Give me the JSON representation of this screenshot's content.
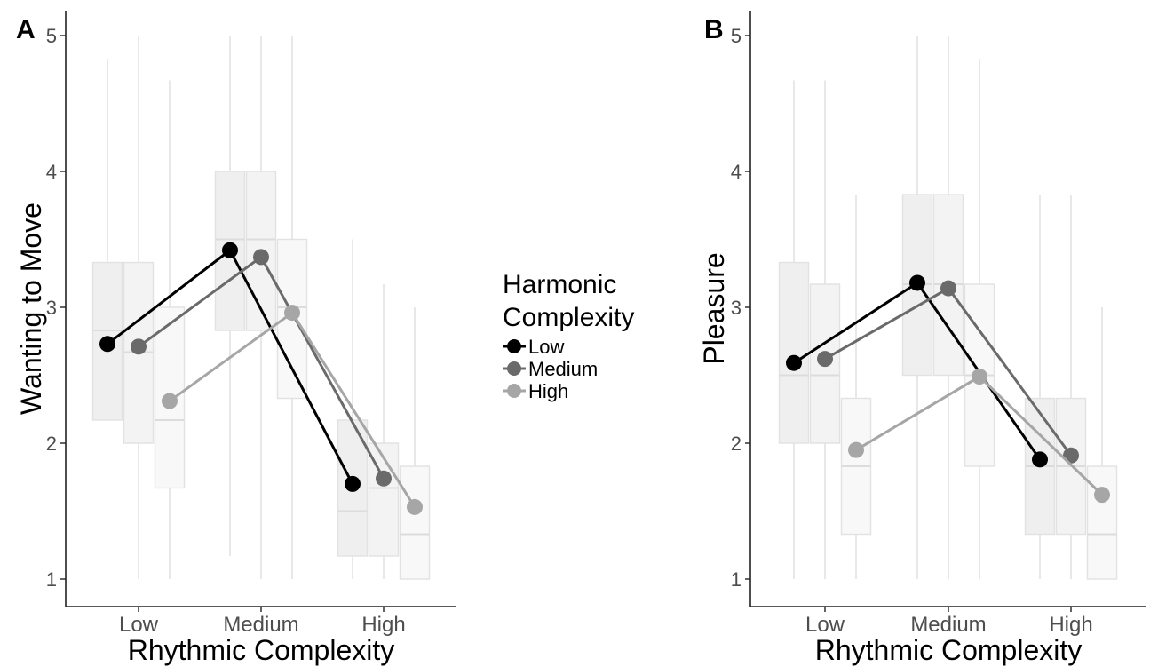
{
  "chart_data": [
    {
      "panel_tag": "A",
      "type": "line",
      "xlabel": "Rhythmic Complexity",
      "ylabel": "Wanting to Move",
      "categories": [
        "Low",
        "Medium",
        "High"
      ],
      "ylim": [
        1,
        5
      ],
      "yticks": [
        1,
        2,
        3,
        4,
        5
      ],
      "grid": false,
      "series": [
        {
          "name": "Low",
          "color": "#000000",
          "values": [
            2.73,
            3.42,
            1.7
          ],
          "boxes": [
            {
              "lower": 2.17,
              "q1": 2.17,
              "median": 2.83,
              "q3": 3.33,
              "upper": 4.83
            },
            {
              "lower": 1.17,
              "q1": 2.83,
              "median": 3.5,
              "q3": 4.0,
              "upper": 5.0
            },
            {
              "lower": 1.0,
              "q1": 1.17,
              "median": 1.5,
              "q3": 2.17,
              "upper": 3.5
            }
          ]
        },
        {
          "name": "Medium",
          "color": "#6a6a6a",
          "values": [
            2.71,
            3.37,
            1.74
          ],
          "boxes": [
            {
              "lower": 1.0,
              "q1": 2.0,
              "median": 2.67,
              "q3": 3.33,
              "upper": 5.0
            },
            {
              "lower": 1.0,
              "q1": 2.83,
              "median": 3.5,
              "q3": 4.0,
              "upper": 5.0
            },
            {
              "lower": 1.0,
              "q1": 1.17,
              "median": 1.67,
              "q3": 2.0,
              "upper": 3.17
            }
          ]
        },
        {
          "name": "High",
          "color": "#a6a6a6",
          "values": [
            2.31,
            2.96,
            1.53
          ],
          "boxes": [
            {
              "lower": 1.0,
              "q1": 1.67,
              "median": 2.17,
              "q3": 3.0,
              "upper": 4.67
            },
            {
              "lower": 1.0,
              "q1": 2.33,
              "median": 3.0,
              "q3": 3.5,
              "upper": 5.0
            },
            {
              "lower": 1.0,
              "q1": 1.0,
              "median": 1.33,
              "q3": 1.83,
              "upper": 3.0
            }
          ]
        }
      ]
    },
    {
      "panel_tag": "B",
      "type": "line",
      "xlabel": "Rhythmic Complexity",
      "ylabel": "Pleasure",
      "categories": [
        "Low",
        "Medium",
        "High"
      ],
      "ylim": [
        1,
        5
      ],
      "yticks": [
        1,
        2,
        3,
        4,
        5
      ],
      "grid": false,
      "series": [
        {
          "name": "Low",
          "color": "#000000",
          "values": [
            2.59,
            3.18,
            1.88
          ],
          "boxes": [
            {
              "lower": 1.0,
              "q1": 2.0,
              "median": 2.5,
              "q3": 3.33,
              "upper": 4.67
            },
            {
              "lower": 1.0,
              "q1": 2.5,
              "median": 3.17,
              "q3": 3.83,
              "upper": 5.0
            },
            {
              "lower": 1.0,
              "q1": 1.33,
              "median": 1.83,
              "q3": 2.33,
              "upper": 3.83
            }
          ]
        },
        {
          "name": "Medium",
          "color": "#6a6a6a",
          "values": [
            2.62,
            3.14,
            1.91
          ],
          "boxes": [
            {
              "lower": 1.0,
              "q1": 2.0,
              "median": 2.5,
              "q3": 3.17,
              "upper": 4.67
            },
            {
              "lower": 1.0,
              "q1": 2.5,
              "median": 3.17,
              "q3": 3.83,
              "upper": 5.0
            },
            {
              "lower": 1.0,
              "q1": 1.33,
              "median": 1.83,
              "q3": 2.33,
              "upper": 3.83
            }
          ]
        },
        {
          "name": "High",
          "color": "#a6a6a6",
          "values": [
            1.95,
            2.49,
            1.62
          ],
          "boxes": [
            {
              "lower": 1.0,
              "q1": 1.33,
              "median": 1.83,
              "q3": 2.33,
              "upper": 3.83
            },
            {
              "lower": 1.0,
              "q1": 1.83,
              "median": 2.5,
              "q3": 3.17,
              "upper": 4.83
            },
            {
              "lower": 1.0,
              "q1": 1.0,
              "median": 1.33,
              "q3": 1.83,
              "upper": 3.0
            }
          ]
        }
      ]
    }
  ],
  "legend": {
    "title_line1": "Harmonic",
    "title_line2": "Complexity",
    "position": "center",
    "items": [
      {
        "label": "Low",
        "color": "#000000"
      },
      {
        "label": "Medium",
        "color": "#6a6a6a"
      },
      {
        "label": "High",
        "color": "#a6a6a6"
      }
    ]
  }
}
